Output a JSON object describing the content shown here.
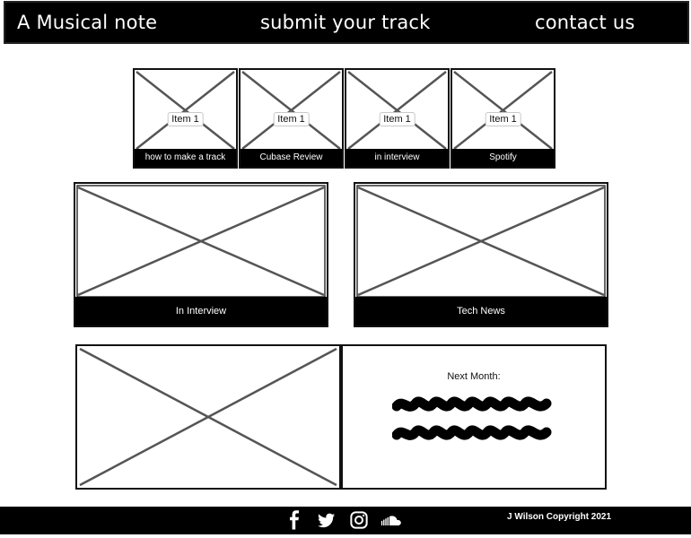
{
  "nav": {
    "brand": "A Musical note",
    "submit": "submit your track",
    "contact": "contact us"
  },
  "thumbnails": [
    {
      "chip": "Item 1",
      "caption": "how to make a track"
    },
    {
      "chip": "Item 1",
      "caption": "Cubase Review"
    },
    {
      "chip": "Item 1",
      "caption": "in interview"
    },
    {
      "chip": "Item 1",
      "caption": "Spotify"
    }
  ],
  "features": [
    {
      "caption": "In Interview"
    },
    {
      "caption": "Tech News"
    }
  ],
  "next_month": {
    "title": "Next Month:"
  },
  "footer": {
    "social_icons": [
      "facebook-icon",
      "twitter-icon",
      "instagram-icon",
      "soundcloud-icon"
    ],
    "copyright": "J Wilson Copyright 2021"
  }
}
